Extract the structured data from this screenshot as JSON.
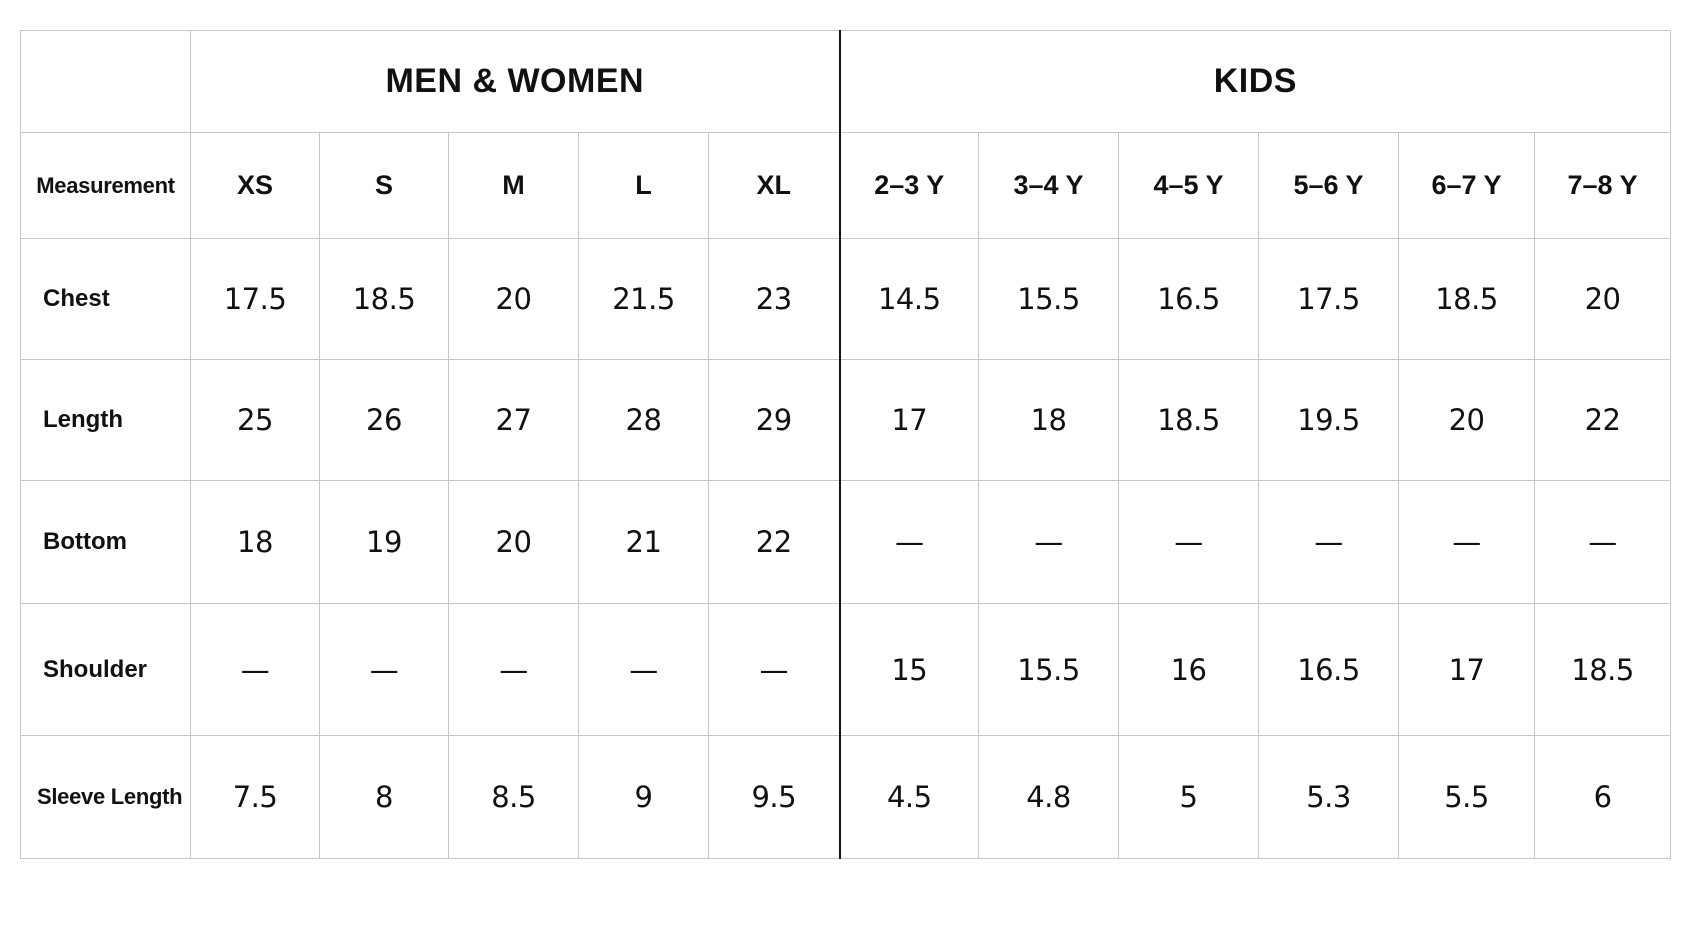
{
  "table": {
    "groups": {
      "adult": "MEN & WOMEN",
      "kids": "KIDS"
    },
    "measurement_header": "Measurement",
    "sizes": {
      "adult": [
        "XS",
        "S",
        "M",
        "L",
        "XL"
      ],
      "kids": [
        "2–3 Y",
        "3–4 Y",
        "4–5 Y",
        "5–6 Y",
        "6–7 Y",
        "7–8 Y"
      ]
    },
    "rows": [
      {
        "label": "Chest",
        "adult": [
          "17.5",
          "18.5",
          "20",
          "21.5",
          "23"
        ],
        "kids": [
          "14.5",
          "15.5",
          "16.5",
          "17.5",
          "18.5",
          "20"
        ]
      },
      {
        "label": "Length",
        "adult": [
          "25",
          "26",
          "27",
          "28",
          "29"
        ],
        "kids": [
          "17",
          "18",
          "18.5",
          "19.5",
          "20",
          "22"
        ]
      },
      {
        "label": "Bottom",
        "adult": [
          "18",
          "19",
          "20",
          "21",
          "22"
        ],
        "kids": [
          "—",
          "—",
          "—",
          "—",
          "—",
          "—"
        ]
      },
      {
        "label": "Shoulder",
        "adult": [
          "—",
          "—",
          "—",
          "—",
          "—"
        ],
        "kids": [
          "15",
          "15.5",
          "16",
          "16.5",
          "17",
          "18.5"
        ]
      },
      {
        "label": "Sleeve Length",
        "adult": [
          "7.5",
          "8",
          "8.5",
          "9",
          "9.5"
        ],
        "kids": [
          "4.5",
          "4.8",
          "5",
          "5.3",
          "5.5",
          "6"
        ]
      }
    ]
  }
}
